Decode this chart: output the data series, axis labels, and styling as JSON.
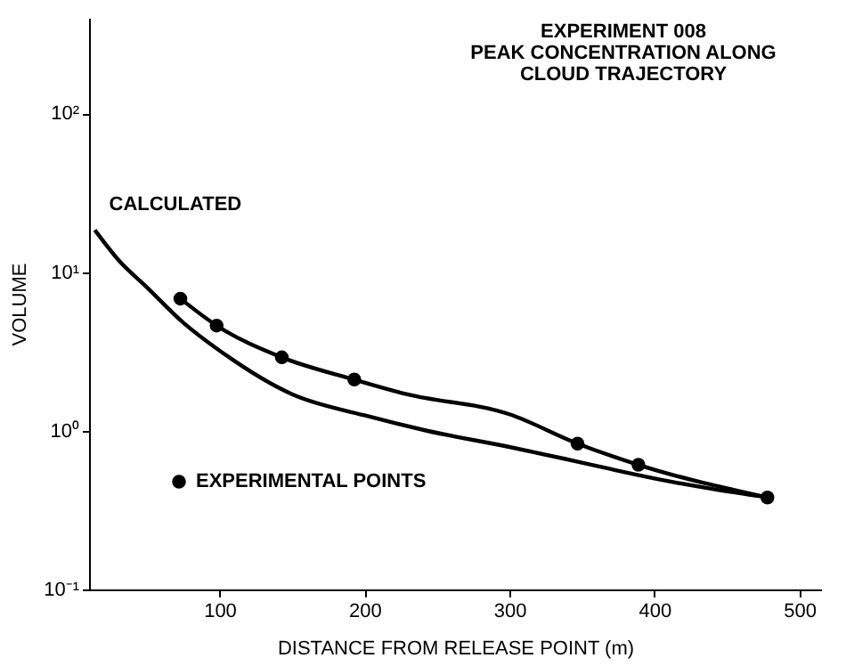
{
  "chart_data": {
    "type": "line",
    "title": "EXPERIMENT 008\nPEAK CONCENTRATION ALONG\nCLOUD TRAJECTORY",
    "xlabel": "DISTANCE FROM RELEASE POINT (m)",
    "ylabel": "VOLUME",
    "series": [
      {
        "name": "CALCULATED",
        "color": "#000000",
        "x": [
          14,
          30,
          50,
          75,
          100,
          150,
          200,
          243,
          300,
          350,
          400,
          440,
          478
        ],
        "values": [
          18.4,
          12,
          8.0,
          4.8,
          3.2,
          1.7,
          1.25,
          1.0,
          0.79,
          0.63,
          0.5,
          0.43,
          0.38
        ]
      },
      {
        "color": "#000000",
        "x": [
          73,
          98,
          143,
          193,
          229,
          300,
          347,
          389,
          478
        ],
        "values": [
          6.8,
          4.6,
          2.9,
          2.1,
          1.7,
          1.27,
          0.83,
          0.61,
          0.38
        ]
      },
      {
        "name": "EXPERIMENTAL POINTS",
        "type": "scatter",
        "color": "#000000",
        "marker": "circle",
        "x": [
          73,
          98,
          143,
          193,
          347,
          389,
          478
        ],
        "values": [
          6.8,
          4.6,
          2.9,
          2.1,
          0.83,
          0.61,
          0.38
        ]
      }
    ],
    "log": "y",
    "xlim": [
      10,
      515
    ],
    "ylim": [
      0.1,
      400
    ],
    "xticks": [
      100,
      200,
      300,
      400,
      500
    ],
    "yticks": [
      {
        "value": 0.1,
        "label": "10⁻¹"
      },
      {
        "value": 1,
        "label": "10⁰"
      },
      {
        "value": 10,
        "label": "10¹"
      },
      {
        "value": 100,
        "label": "10²"
      }
    ],
    "grid": false,
    "legend": "bottom left"
  }
}
